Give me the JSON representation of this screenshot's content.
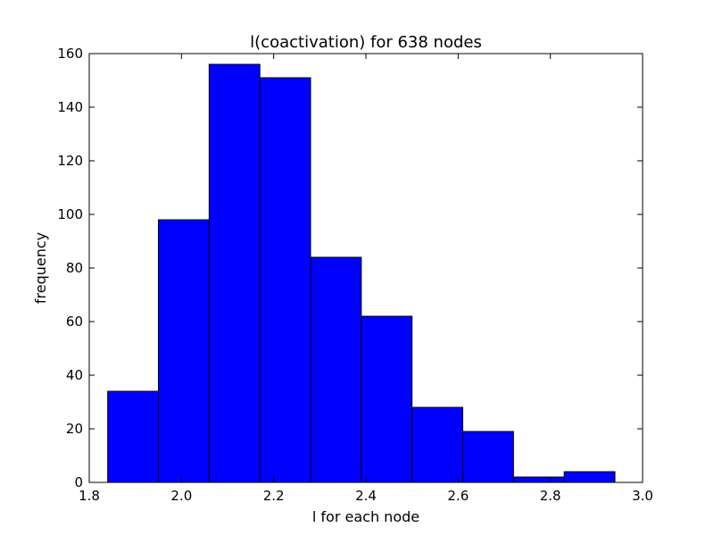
{
  "chart_data": {
    "type": "bar",
    "title": "l(coactivation) for 638 nodes",
    "xlabel": "l for each node",
    "ylabel": "frequency",
    "xlim": [
      1.8,
      3.0
    ],
    "ylim": [
      0,
      160
    ],
    "xticks": [
      "1.8",
      "2.0",
      "2.2",
      "2.4",
      "2.6",
      "2.8",
      "3.0"
    ],
    "yticks": [
      "0",
      "20",
      "40",
      "60",
      "80",
      "100",
      "120",
      "140",
      "160"
    ],
    "bins": [
      {
        "start": 1.84,
        "end": 1.95,
        "value": 34
      },
      {
        "start": 1.95,
        "end": 2.06,
        "value": 98
      },
      {
        "start": 2.06,
        "end": 2.17,
        "value": 156
      },
      {
        "start": 2.17,
        "end": 2.28,
        "value": 151
      },
      {
        "start": 2.28,
        "end": 2.39,
        "value": 84
      },
      {
        "start": 2.39,
        "end": 2.5,
        "value": 62
      },
      {
        "start": 2.5,
        "end": 2.61,
        "value": 28
      },
      {
        "start": 2.61,
        "end": 2.72,
        "value": 19
      },
      {
        "start": 2.72,
        "end": 2.83,
        "value": 2
      },
      {
        "start": 2.83,
        "end": 2.94,
        "value": 4
      }
    ],
    "bar_color": "#0000ff",
    "edge_color": "#000000",
    "grid": false,
    "legend": "none"
  }
}
